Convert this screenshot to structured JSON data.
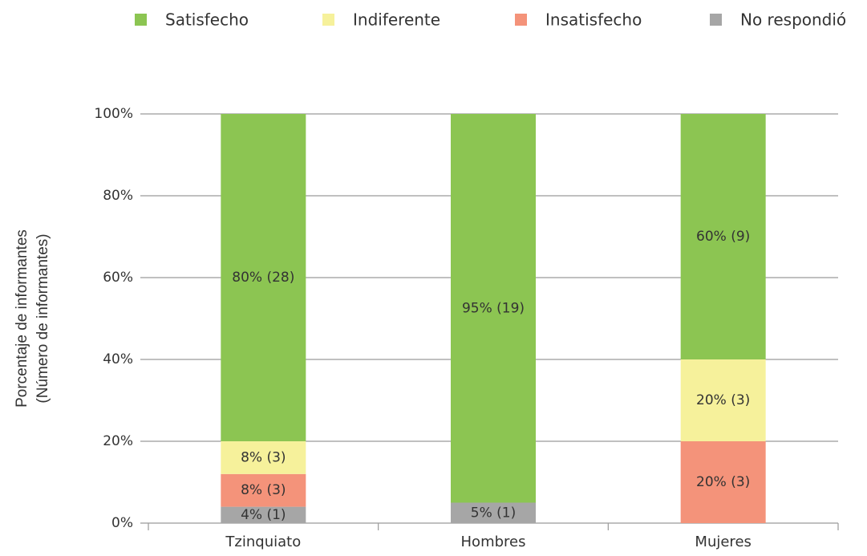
{
  "chart_data": {
    "type": "stacked_bar",
    "ylabel": [
      "Porcentaje de informantes",
      "(Número de informantes)"
    ],
    "categories": [
      "Tzinquiato",
      "Hombres",
      "Mujeres"
    ],
    "series": [
      {
        "name": "No respondió",
        "color": "#a6a6a6",
        "values": [
          4,
          5,
          null
        ],
        "value_labels": [
          "4% (1)",
          "5% (1)",
          null
        ]
      },
      {
        "name": "Insatisfecho",
        "color": "#f4937a",
        "values": [
          8,
          null,
          20
        ],
        "value_labels": [
          "8% (3)",
          null,
          "20% (3)"
        ]
      },
      {
        "name": "Indiferente",
        "color": "#f6f19b",
        "values": [
          8,
          null,
          20
        ],
        "value_labels": [
          "8% (3)",
          null,
          "20% (3)"
        ]
      },
      {
        "name": "Satisfecho",
        "color": "#8cc552",
        "values": [
          80,
          95,
          60
        ],
        "value_labels": [
          "80% (28)",
          "95% (19)",
          "60% (9)"
        ]
      }
    ],
    "legend_order": [
      3,
      2,
      1,
      0
    ],
    "ylim": [
      0,
      100
    ],
    "yticks": [
      {
        "value": 0,
        "label": "0%"
      },
      {
        "value": 20,
        "label": "20%"
      },
      {
        "value": 40,
        "label": "40%"
      },
      {
        "value": 60,
        "label": "60%"
      },
      {
        "value": 80,
        "label": "80%"
      },
      {
        "value": 100,
        "label": "100%"
      }
    ],
    "grid": true
  }
}
